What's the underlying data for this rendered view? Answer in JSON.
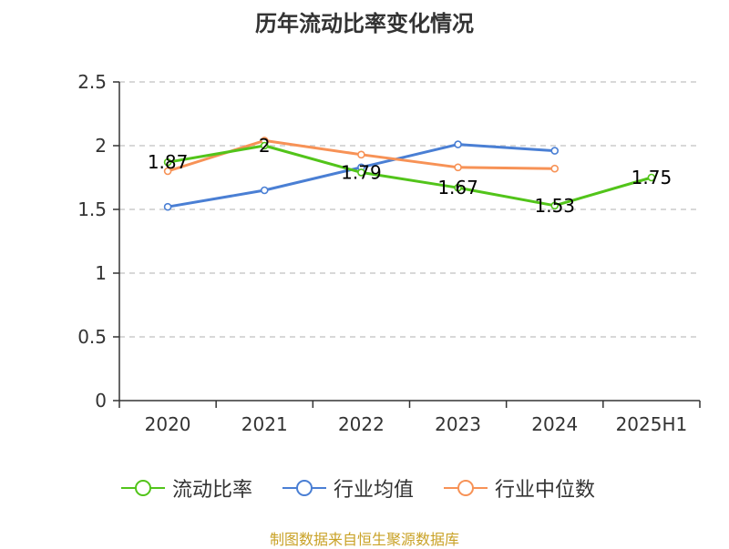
{
  "chart_data": {
    "type": "line",
    "title": "历年流动比率变化情况",
    "categories": [
      "2020",
      "2021",
      "2022",
      "2023",
      "2024",
      "2025H1"
    ],
    "ylim": [
      0,
      2.5
    ],
    "yticks": [
      "0",
      "0.5",
      "1",
      "1.5",
      "2",
      "2.5"
    ],
    "grid": true,
    "legend_position": "bottom",
    "series": [
      {
        "name": "流动比率",
        "color": "#52c41a",
        "values": [
          1.87,
          2.0,
          1.79,
          1.67,
          1.53,
          1.75
        ],
        "labels": [
          "1.87",
          "2",
          "1.79",
          "1.67",
          "1.53",
          "1.75"
        ]
      },
      {
        "name": "行业均值",
        "color": "#4a7fd4",
        "values": [
          1.52,
          1.65,
          1.83,
          2.01,
          1.96,
          null
        ]
      },
      {
        "name": "行业中位数",
        "color": "#f79256",
        "values": [
          1.8,
          2.04,
          1.93,
          1.83,
          1.82,
          null
        ]
      }
    ]
  },
  "source_text": "制图数据来自恒生聚源数据库"
}
